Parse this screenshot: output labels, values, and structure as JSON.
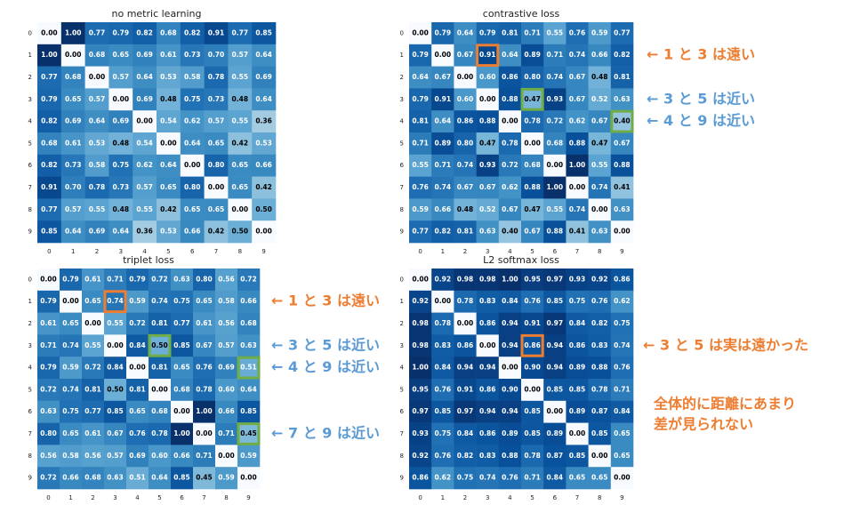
{
  "chart_data": [
    {
      "type": "heatmap",
      "title": "no metric learning",
      "colormap": "Blues",
      "categories": [
        "0",
        "1",
        "2",
        "3",
        "4",
        "5",
        "6",
        "7",
        "8",
        "9"
      ],
      "values": [
        [
          0,
          1,
          0.77,
          0.79,
          0.82,
          0.68,
          0.82,
          0.91,
          0.77,
          0.85
        ],
        [
          1,
          0,
          0.68,
          0.65,
          0.69,
          0.61,
          0.73,
          0.7,
          0.57,
          0.64
        ],
        [
          0.77,
          0.68,
          0,
          0.57,
          0.64,
          0.53,
          0.58,
          0.78,
          0.55,
          0.69
        ],
        [
          0.79,
          0.65,
          0.57,
          0,
          0.69,
          0.48,
          0.75,
          0.73,
          0.48,
          0.64
        ],
        [
          0.82,
          0.69,
          0.64,
          0.69,
          0,
          0.54,
          0.62,
          0.57,
          0.55,
          0.36
        ],
        [
          0.68,
          0.61,
          0.53,
          0.48,
          0.54,
          0,
          0.64,
          0.65,
          0.42,
          0.53
        ],
        [
          0.82,
          0.73,
          0.58,
          0.75,
          0.62,
          0.64,
          0,
          0.8,
          0.65,
          0.66
        ],
        [
          0.91,
          0.7,
          0.78,
          0.73,
          0.57,
          0.65,
          0.8,
          0,
          0.65,
          0.42
        ],
        [
          0.77,
          0.57,
          0.55,
          0.48,
          0.55,
          0.42,
          0.65,
          0.65,
          0,
          0.5
        ],
        [
          0.85,
          0.64,
          0.69,
          0.64,
          0.36,
          0.53,
          0.66,
          0.42,
          0.5,
          0
        ]
      ],
      "value_labels": [
        [
          "0.00",
          "1.00",
          "0.77",
          "0.79",
          "0.82",
          "0.68",
          "0.82",
          "0.91",
          "0.77",
          "0.85"
        ],
        [
          "1.00",
          "0.00",
          "0.68",
          "0.65",
          "0.69",
          "0.61",
          "0.73",
          "0.70",
          "0.57",
          "0.64"
        ],
        [
          "0.77",
          "0.68",
          "0.00",
          "0.57",
          "0.64",
          "0.53",
          "0.58",
          "0.78",
          "0.55",
          "0.69"
        ],
        [
          "0.79",
          "0.65",
          "0.57",
          "0.00",
          "0.69",
          "0.48",
          "0.75",
          "0.73",
          "0.48",
          "0.64"
        ],
        [
          "0.82",
          "0.69",
          "0.64",
          "0.69",
          "0.00",
          "0.54",
          "0.62",
          "0.57",
          "0.55",
          "0.36"
        ],
        [
          "0.68",
          "0.61",
          "0.53",
          "0.48",
          "0.54",
          "0.00",
          "0.64",
          "0.65",
          "0.42",
          "0.53"
        ],
        [
          "0.82",
          "0.73",
          "0.58",
          "0.75",
          "0.62",
          "0.64",
          "0.00",
          "0.80",
          "0.65",
          "0.66"
        ],
        [
          "0.91",
          "0.70",
          "0.78",
          "0.73",
          "0.57",
          "0.65",
          "0.80",
          "0.00",
          "0.65",
          "0.42"
        ],
        [
          "0.77",
          "0.57",
          "0.55",
          "0.48",
          "0.55",
          "0.42",
          "0.65",
          "0.65",
          "0.00",
          "0.50"
        ],
        [
          "0.85",
          "0.64",
          "0.69",
          "0.64",
          "0.36",
          "0.53",
          "0.66",
          "0.42",
          "0.50",
          "0.00"
        ]
      ],
      "annotations": []
    },
    {
      "type": "heatmap",
      "title": "contrastive loss",
      "colormap": "Blues",
      "categories": [
        "0",
        "1",
        "2",
        "3",
        "4",
        "5",
        "6",
        "7",
        "8",
        "9"
      ],
      "values": [
        [
          0,
          0.79,
          0.64,
          0.79,
          0.81,
          0.71,
          0.55,
          0.76,
          0.59,
          0.77
        ],
        [
          0.79,
          0,
          0.67,
          0.91,
          0.64,
          0.89,
          0.71,
          0.74,
          0.66,
          0.82
        ],
        [
          0.64,
          0.67,
          0,
          0.6,
          0.86,
          0.8,
          0.74,
          0.67,
          0.48,
          0.81
        ],
        [
          0.79,
          0.91,
          0.6,
          0,
          0.88,
          0.47,
          0.93,
          0.67,
          0.52,
          0.63
        ],
        [
          0.81,
          0.64,
          0.86,
          0.88,
          0,
          0.78,
          0.72,
          0.62,
          0.67,
          0.4
        ],
        [
          0.71,
          0.89,
          0.8,
          0.47,
          0.78,
          0,
          0.68,
          0.88,
          0.47,
          0.67
        ],
        [
          0.55,
          0.71,
          0.74,
          0.93,
          0.72,
          0.68,
          0,
          1,
          0.55,
          0.88
        ],
        [
          0.76,
          0.74,
          0.67,
          0.67,
          0.62,
          0.88,
          1,
          0,
          0.74,
          0.41
        ],
        [
          0.59,
          0.66,
          0.48,
          0.52,
          0.67,
          0.47,
          0.55,
          0.74,
          0,
          0.63
        ],
        [
          0.77,
          0.82,
          0.81,
          0.63,
          0.4,
          0.67,
          0.88,
          0.41,
          0.63,
          0
        ]
      ],
      "value_labels": [
        [
          "0.00",
          "0.79",
          "0.64",
          "0.79",
          "0.81",
          "0.71",
          "0.55",
          "0.76",
          "0.59",
          "0.77"
        ],
        [
          "0.79",
          "0.00",
          "0.67",
          "0.91",
          "0.64",
          "0.89",
          "0.71",
          "0.74",
          "0.66",
          "0.82"
        ],
        [
          "0.64",
          "0.67",
          "0.00",
          "0.60",
          "0.86",
          "0.80",
          "0.74",
          "0.67",
          "0.48",
          "0.81"
        ],
        [
          "0.79",
          "0.91",
          "0.60",
          "0.00",
          "0.88",
          "0.47",
          "0.93",
          "0.67",
          "0.52",
          "0.63"
        ],
        [
          "0.81",
          "0.64",
          "0.86",
          "0.88",
          "0.00",
          "0.78",
          "0.72",
          "0.62",
          "0.67",
          "0.40"
        ],
        [
          "0.71",
          "0.89",
          "0.80",
          "0.47",
          "0.78",
          "0.00",
          "0.68",
          "0.88",
          "0.47",
          "0.67"
        ],
        [
          "0.55",
          "0.71",
          "0.74",
          "0.93",
          "0.72",
          "0.68",
          "0.00",
          "1.00",
          "0.55",
          "0.88"
        ],
        [
          "0.76",
          "0.74",
          "0.67",
          "0.67",
          "0.62",
          "0.88",
          "1.00",
          "0.00",
          "0.74",
          "0.41"
        ],
        [
          "0.59",
          "0.66",
          "0.48",
          "0.52",
          "0.67",
          "0.47",
          "0.55",
          "0.74",
          "0.00",
          "0.63"
        ],
        [
          "0.77",
          "0.82",
          "0.81",
          "0.63",
          "0.40",
          "0.67",
          "0.88",
          "0.41",
          "0.63",
          "0.00"
        ]
      ],
      "annotations": [
        {
          "text": "← 1 と 3 は遠い",
          "color": "#ed7d31",
          "box_color": "#ed7d31",
          "row": 1,
          "col": 3
        },
        {
          "text": "← 3 と 5 は近い",
          "color": "#5b9bd5",
          "box_color": "#70ad47",
          "row": 3,
          "col": 5
        },
        {
          "text": "← 4 と 9 は近い",
          "color": "#5b9bd5",
          "box_color": "#70ad47",
          "row": 4,
          "col": 9
        }
      ]
    },
    {
      "type": "heatmap",
      "title": "triplet loss",
      "colormap": "Blues",
      "categories": [
        "0",
        "1",
        "2",
        "3",
        "4",
        "5",
        "6",
        "7",
        "8",
        "9"
      ],
      "values": [
        [
          0,
          0.79,
          0.61,
          0.71,
          0.79,
          0.72,
          0.63,
          0.8,
          0.56,
          0.72
        ],
        [
          0.79,
          0,
          0.65,
          0.74,
          0.59,
          0.74,
          0.75,
          0.65,
          0.58,
          0.66
        ],
        [
          0.61,
          0.65,
          0,
          0.55,
          0.72,
          0.81,
          0.77,
          0.61,
          0.56,
          0.68
        ],
        [
          0.71,
          0.74,
          0.55,
          0,
          0.84,
          0.5,
          0.85,
          0.67,
          0.57,
          0.63
        ],
        [
          0.79,
          0.59,
          0.72,
          0.84,
          0,
          0.81,
          0.65,
          0.76,
          0.69,
          0.51
        ],
        [
          0.72,
          0.74,
          0.81,
          0.5,
          0.81,
          0,
          0.68,
          0.78,
          0.6,
          0.64
        ],
        [
          0.63,
          0.75,
          0.77,
          0.85,
          0.65,
          0.68,
          0,
          1,
          0.66,
          0.85
        ],
        [
          0.8,
          0.65,
          0.61,
          0.67,
          0.76,
          0.78,
          1,
          0,
          0.71,
          0.45
        ],
        [
          0.56,
          0.58,
          0.56,
          0.57,
          0.69,
          0.6,
          0.66,
          0.71,
          0,
          0.59
        ],
        [
          0.72,
          0.66,
          0.68,
          0.63,
          0.51,
          0.64,
          0.85,
          0.45,
          0.59,
          0
        ]
      ],
      "value_labels": [
        [
          "0.00",
          "0.79",
          "0.61",
          "0.71",
          "0.79",
          "0.72",
          "0.63",
          "0.80",
          "0.56",
          "0.72"
        ],
        [
          "0.79",
          "0.00",
          "0.65",
          "0.74",
          "0.59",
          "0.74",
          "0.75",
          "0.65",
          "0.58",
          "0.66"
        ],
        [
          "0.61",
          "0.65",
          "0.00",
          "0.55",
          "0.72",
          "0.81",
          "0.77",
          "0.61",
          "0.56",
          "0.68"
        ],
        [
          "0.71",
          "0.74",
          "0.55",
          "0.00",
          "0.84",
          "0.50",
          "0.85",
          "0.67",
          "0.57",
          "0.63"
        ],
        [
          "0.79",
          "0.59",
          "0.72",
          "0.84",
          "0.00",
          "0.81",
          "0.65",
          "0.76",
          "0.69",
          "0.51"
        ],
        [
          "0.72",
          "0.74",
          "0.81",
          "0.50",
          "0.81",
          "0.00",
          "0.68",
          "0.78",
          "0.60",
          "0.64"
        ],
        [
          "0.63",
          "0.75",
          "0.77",
          "0.85",
          "0.65",
          "0.68",
          "0.00",
          "1.00",
          "0.66",
          "0.85"
        ],
        [
          "0.80",
          "0.65",
          "0.61",
          "0.67",
          "0.76",
          "0.78",
          "1.00",
          "0.00",
          "0.71",
          "0.45"
        ],
        [
          "0.56",
          "0.58",
          "0.56",
          "0.57",
          "0.69",
          "0.60",
          "0.66",
          "0.71",
          "0.00",
          "0.59"
        ],
        [
          "0.72",
          "0.66",
          "0.68",
          "0.63",
          "0.51",
          "0.64",
          "0.85",
          "0.45",
          "0.59",
          "0.00"
        ]
      ],
      "annotations": [
        {
          "text": "← 1 と 3 は遠い",
          "color": "#ed7d31",
          "box_color": "#ed7d31",
          "row": 1,
          "col": 3
        },
        {
          "text": "← 3 と 5 は近い",
          "color": "#5b9bd5",
          "box_color": "#70ad47",
          "row": 3,
          "col": 5
        },
        {
          "text": "← 4 と 9 は近い",
          "color": "#5b9bd5",
          "box_color": "#70ad47",
          "row": 4,
          "col": 9
        },
        {
          "text": "← 7 と 9 は近い",
          "color": "#5b9bd5",
          "box_color": "#70ad47",
          "row": 7,
          "col": 9
        }
      ]
    },
    {
      "type": "heatmap",
      "title": "L2 softmax loss",
      "colormap": "Blues",
      "categories": [
        "0",
        "1",
        "2",
        "3",
        "4",
        "5",
        "6",
        "7",
        "8",
        "9"
      ],
      "values": [
        [
          0,
          0.92,
          0.98,
          0.98,
          1,
          0.95,
          0.97,
          0.93,
          0.92,
          0.86
        ],
        [
          0.92,
          0,
          0.78,
          0.83,
          0.84,
          0.76,
          0.85,
          0.75,
          0.76,
          0.62
        ],
        [
          0.98,
          0.78,
          0,
          0.86,
          0.94,
          0.91,
          0.97,
          0.84,
          0.82,
          0.75
        ],
        [
          0.98,
          0.83,
          0.86,
          0,
          0.94,
          0.86,
          0.94,
          0.86,
          0.83,
          0.74
        ],
        [
          1,
          0.84,
          0.94,
          0.94,
          0,
          0.9,
          0.94,
          0.89,
          0.88,
          0.76
        ],
        [
          0.95,
          0.76,
          0.91,
          0.86,
          0.9,
          0,
          0.85,
          0.85,
          0.78,
          0.71
        ],
        [
          0.97,
          0.85,
          0.97,
          0.94,
          0.94,
          0.85,
          0,
          0.89,
          0.87,
          0.84
        ],
        [
          0.93,
          0.75,
          0.84,
          0.86,
          0.89,
          0.85,
          0.89,
          0,
          0.85,
          0.65
        ],
        [
          0.92,
          0.76,
          0.82,
          0.83,
          0.88,
          0.78,
          0.87,
          0.85,
          0,
          0.65
        ],
        [
          0.86,
          0.62,
          0.75,
          0.74,
          0.76,
          0.71,
          0.84,
          0.65,
          0.65,
          0
        ]
      ],
      "value_labels": [
        [
          "0.00",
          "0.92",
          "0.98",
          "0.98",
          "1.00",
          "0.95",
          "0.97",
          "0.93",
          "0.92",
          "0.86"
        ],
        [
          "0.92",
          "0.00",
          "0.78",
          "0.83",
          "0.84",
          "0.76",
          "0.85",
          "0.75",
          "0.76",
          "0.62"
        ],
        [
          "0.98",
          "0.78",
          "0.00",
          "0.86",
          "0.94",
          "0.91",
          "0.97",
          "0.84",
          "0.82",
          "0.75"
        ],
        [
          "0.98",
          "0.83",
          "0.86",
          "0.00",
          "0.94",
          "0.86",
          "0.94",
          "0.86",
          "0.83",
          "0.74"
        ],
        [
          "1.00",
          "0.84",
          "0.94",
          "0.94",
          "0.00",
          "0.90",
          "0.94",
          "0.89",
          "0.88",
          "0.76"
        ],
        [
          "0.95",
          "0.76",
          "0.91",
          "0.86",
          "0.90",
          "0.00",
          "0.85",
          "0.85",
          "0.78",
          "0.71"
        ],
        [
          "0.97",
          "0.85",
          "0.97",
          "0.94",
          "0.94",
          "0.85",
          "0.00",
          "0.89",
          "0.87",
          "0.84"
        ],
        [
          "0.93",
          "0.75",
          "0.84",
          "0.86",
          "0.89",
          "0.85",
          "0.89",
          "0.00",
          "0.85",
          "0.65"
        ],
        [
          "0.92",
          "0.76",
          "0.82",
          "0.83",
          "0.88",
          "0.78",
          "0.87",
          "0.85",
          "0.00",
          "0.65"
        ],
        [
          "0.86",
          "0.62",
          "0.75",
          "0.74",
          "0.76",
          "0.71",
          "0.84",
          "0.65",
          "0.65",
          "0.00"
        ]
      ],
      "annotations": [
        {
          "text": "← 3 と 5 は実は遠かった",
          "color": "#ed7d31",
          "box_color": "#ed7d31",
          "row": 3,
          "col": 5
        }
      ],
      "note": {
        "lines": [
          "全体的に距離にあまり",
          "差が見られない"
        ],
        "color": "#ed7d31"
      }
    }
  ]
}
